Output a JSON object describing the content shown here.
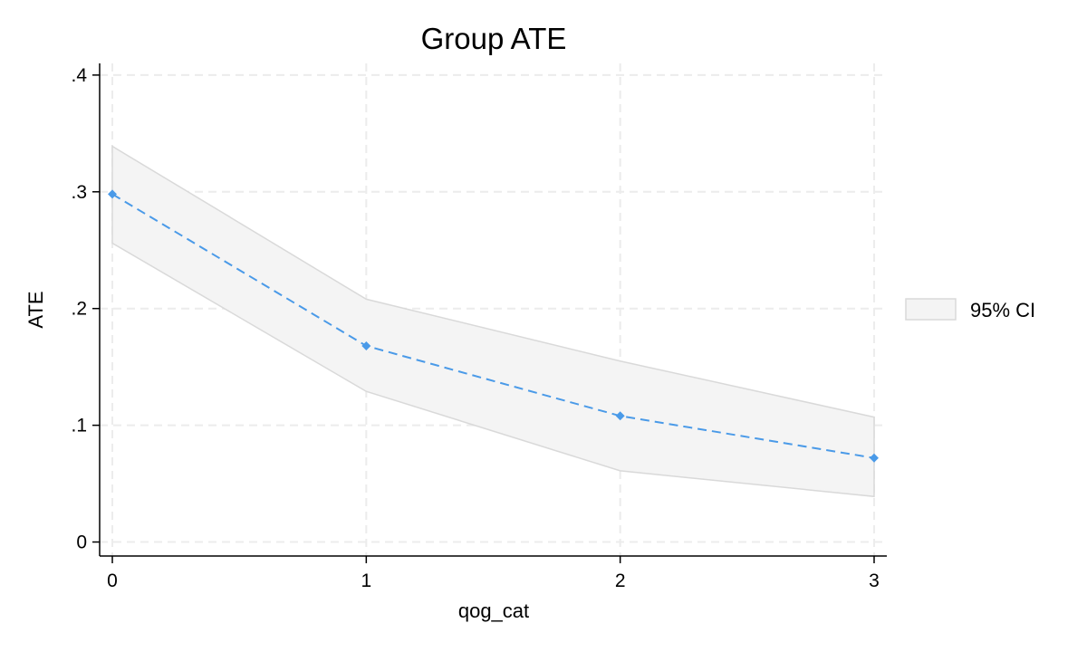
{
  "chart_data": {
    "type": "line",
    "title": "Group ATE",
    "xlabel": "qog_cat",
    "ylabel": "ATE",
    "x": [
      0,
      1,
      2,
      3
    ],
    "xticks": [
      "0",
      "1",
      "2",
      "3"
    ],
    "xlim": [
      -0.05,
      3.05
    ],
    "ylim": [
      -0.012,
      0.41
    ],
    "yticks": [
      {
        "value": 0,
        "label": "0"
      },
      {
        "value": 0.1,
        "label": ".1"
      },
      {
        "value": 0.2,
        "label": ".2"
      },
      {
        "value": 0.3,
        "label": ".3"
      },
      {
        "value": 0.4,
        "label": ".4"
      }
    ],
    "grid": true,
    "legend_position": "right",
    "series": [
      {
        "values": [
          0.298,
          0.168,
          0.108,
          0.072
        ],
        "style": "dashed line with diamond markers",
        "color": "#4a9ae8"
      }
    ],
    "confidence_band": {
      "name": "95% CI",
      "lower": [
        0.256,
        0.129,
        0.061,
        0.039
      ],
      "upper": [
        0.339,
        0.208,
        0.155,
        0.107
      ],
      "fill": "#f4f4f4",
      "stroke": "#d9d9d9"
    }
  }
}
